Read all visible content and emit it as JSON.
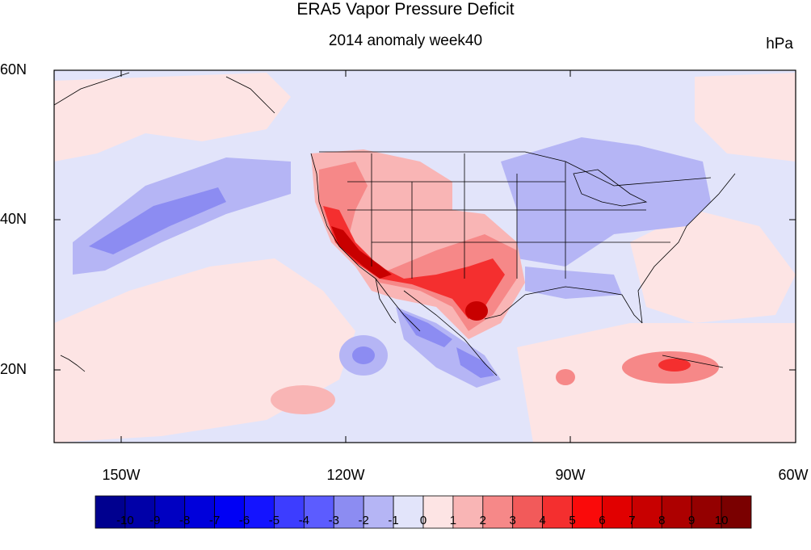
{
  "title": "ERA5 Vapor Pressure Deficit",
  "subtitle": "2014 anomaly week40",
  "units": "hPa",
  "lat_labels": [
    "60N",
    "40N",
    "20N"
  ],
  "lon_labels": [
    "150W",
    "120W",
    "90W",
    "60W"
  ],
  "colorbar": {
    "labels": [
      "-10",
      "-9",
      "-8",
      "-7",
      "-6",
      "-5",
      "-4",
      "-3",
      "-2",
      "-1",
      "0",
      "1",
      "2",
      "3",
      "4",
      "5",
      "6",
      "7",
      "8",
      "9",
      "10"
    ],
    "colors": [
      "#00008f",
      "#0000a8",
      "#0000c2",
      "#0000db",
      "#0000f5",
      "#1414ff",
      "#3d3dff",
      "#5c5cff",
      "#8c8cf2",
      "#b5b5f5",
      "#e2e4fa",
      "#fde4e4",
      "#f9b5b5",
      "#f68888",
      "#f25a5a",
      "#f42f2f",
      "#fa0a0a",
      "#e10000",
      "#c80000",
      "#ad0000",
      "#940000",
      "#7a0000"
    ]
  },
  "map_colors": {
    "neutral_blue": "#e2e4fa",
    "light_blue": "#b5b5f5",
    "mid_blue": "#8c8cf2",
    "strong_blue": "#5c5cff",
    "light_red": "#fde4e4",
    "pink": "#f9b5b5",
    "salmon": "#f68888",
    "red": "#f42f2f",
    "dark_red": "#c80000",
    "darkest_red": "#940000"
  }
}
